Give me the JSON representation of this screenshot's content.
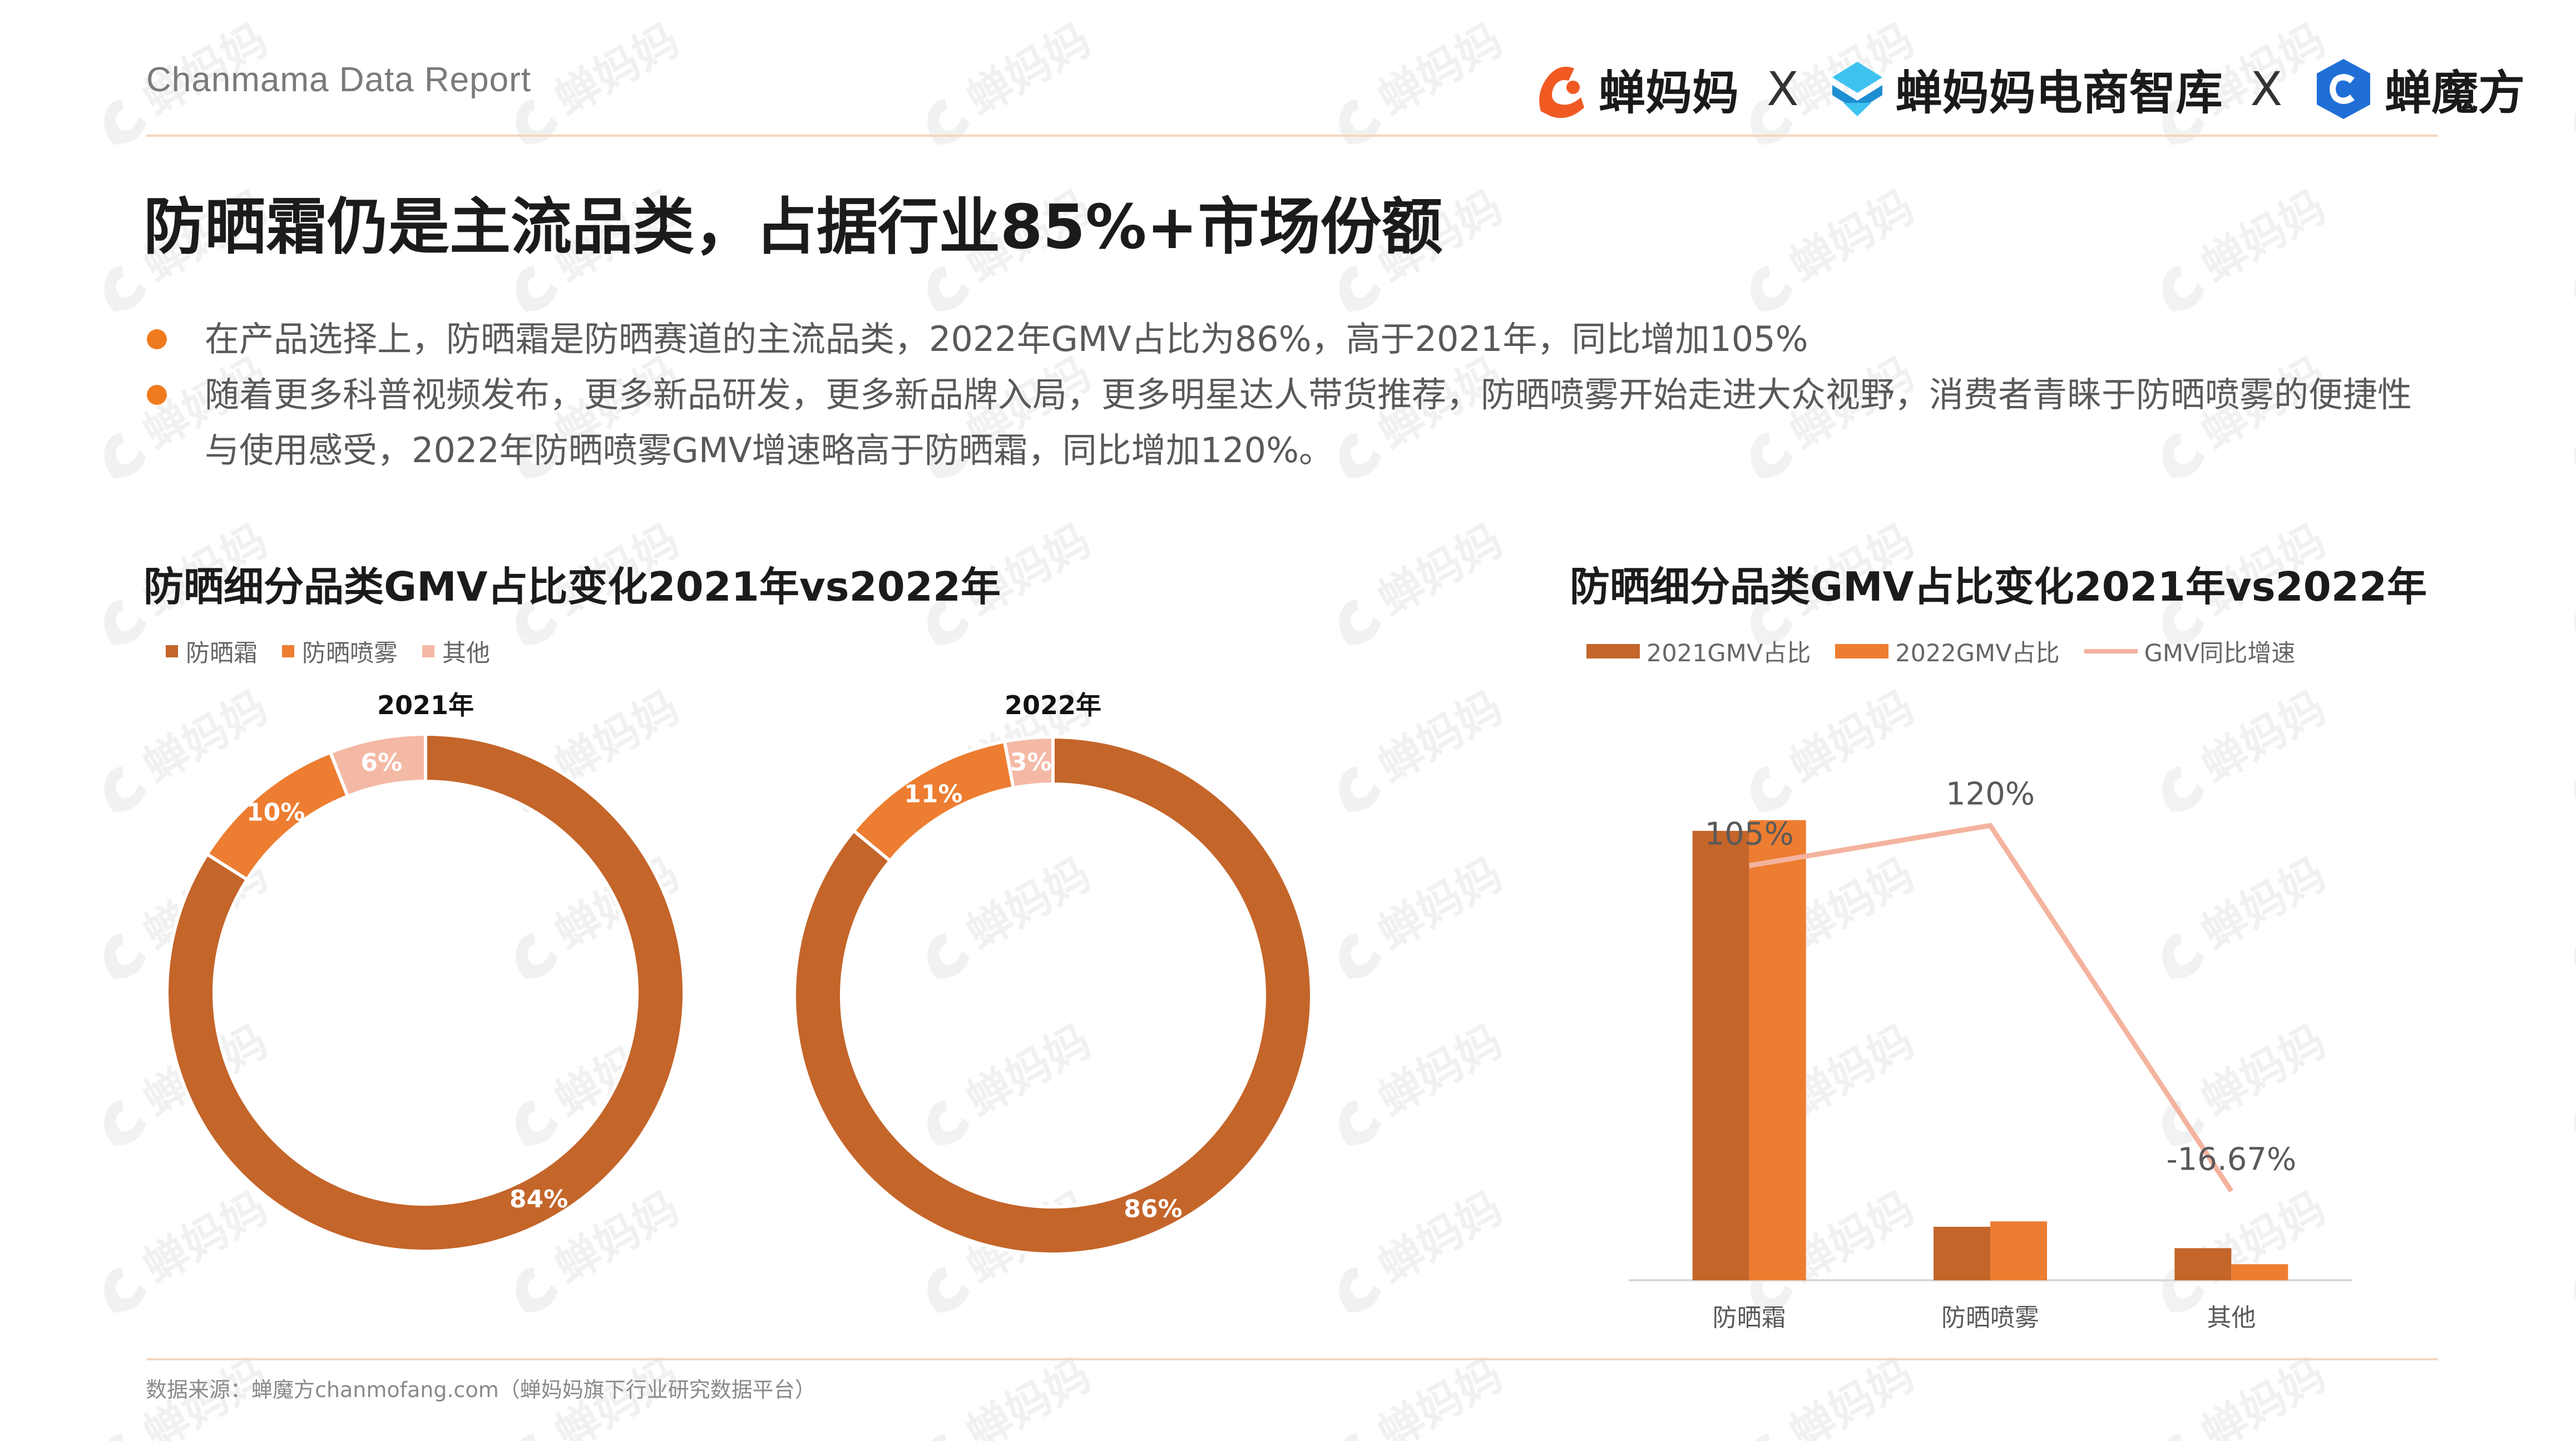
{
  "header": {
    "report_name": "Chanmama Data Report",
    "logos": [
      {
        "name": "蝉妈妈",
        "color": "#f05a22"
      },
      {
        "name": "蝉妈妈电商智库",
        "color": "#26a8e0"
      },
      {
        "name": "蝉魔方",
        "color": "#1f6fd6"
      }
    ],
    "separator": "X"
  },
  "headline": "防晒霜仍是主流品类，占据行业85%+市场份额",
  "bullets": [
    "在产品选择上，防晒霜是防晒赛道的主流品类，2022年GMV占比为86%，高于2021年，同比增加105%",
    "随着更多科普视频发布，更多新品研发，更多新品牌入局，更多明星达人带货推荐，防晒喷雾开始走进大众视野，消费者青睐于防晒喷雾的便捷性与使用感受，2022年防晒喷雾GMV增速略高于防晒霜，同比增加120%。"
  ],
  "colors": {
    "accent": "#f07b1f",
    "sunscreen": "#c4652a",
    "spray": "#ed7d31",
    "other": "#f4b9a5",
    "growth_line": "#f4b39e"
  },
  "watermark_text": "蝉妈妈",
  "chart_data": [
    {
      "type": "pie",
      "title": "防晒细分品类GMV占比变化2021年vs2022年",
      "legend": [
        "防晒霜",
        "防晒喷雾",
        "其他"
      ],
      "legend_position": "top-left",
      "donuts": [
        {
          "label": "2021年",
          "values": [
            84,
            10,
            6
          ],
          "value_labels": [
            "84%",
            "10%",
            "6%"
          ]
        },
        {
          "label": "2022年",
          "values": [
            86,
            11,
            3
          ],
          "value_labels": [
            "86%",
            "11%",
            "3%"
          ]
        }
      ]
    },
    {
      "type": "bar",
      "title": "防晒细分品类GMV占比变化2021年vs2022年",
      "categories": [
        "防晒霜",
        "防晒喷雾",
        "其他"
      ],
      "legend_position": "top-left",
      "series": [
        {
          "name": "2021GMV占比",
          "kind": "bar",
          "values": [
            84,
            10,
            6
          ]
        },
        {
          "name": "2022GMV占比",
          "kind": "bar",
          "values": [
            86,
            11,
            3
          ]
        },
        {
          "name": "GMV同比增速",
          "kind": "line",
          "values": [
            105,
            120,
            -16.67
          ],
          "value_labels": [
            "105%",
            "120%",
            "-16.67%"
          ]
        }
      ],
      "ylim": [
        0,
        100
      ],
      "growth_ylim": [
        -50,
        150
      ],
      "grid": false
    }
  ],
  "source": "数据来源：蝉魔方chanmofang.com（蝉妈妈旗下行业研究数据平台）"
}
